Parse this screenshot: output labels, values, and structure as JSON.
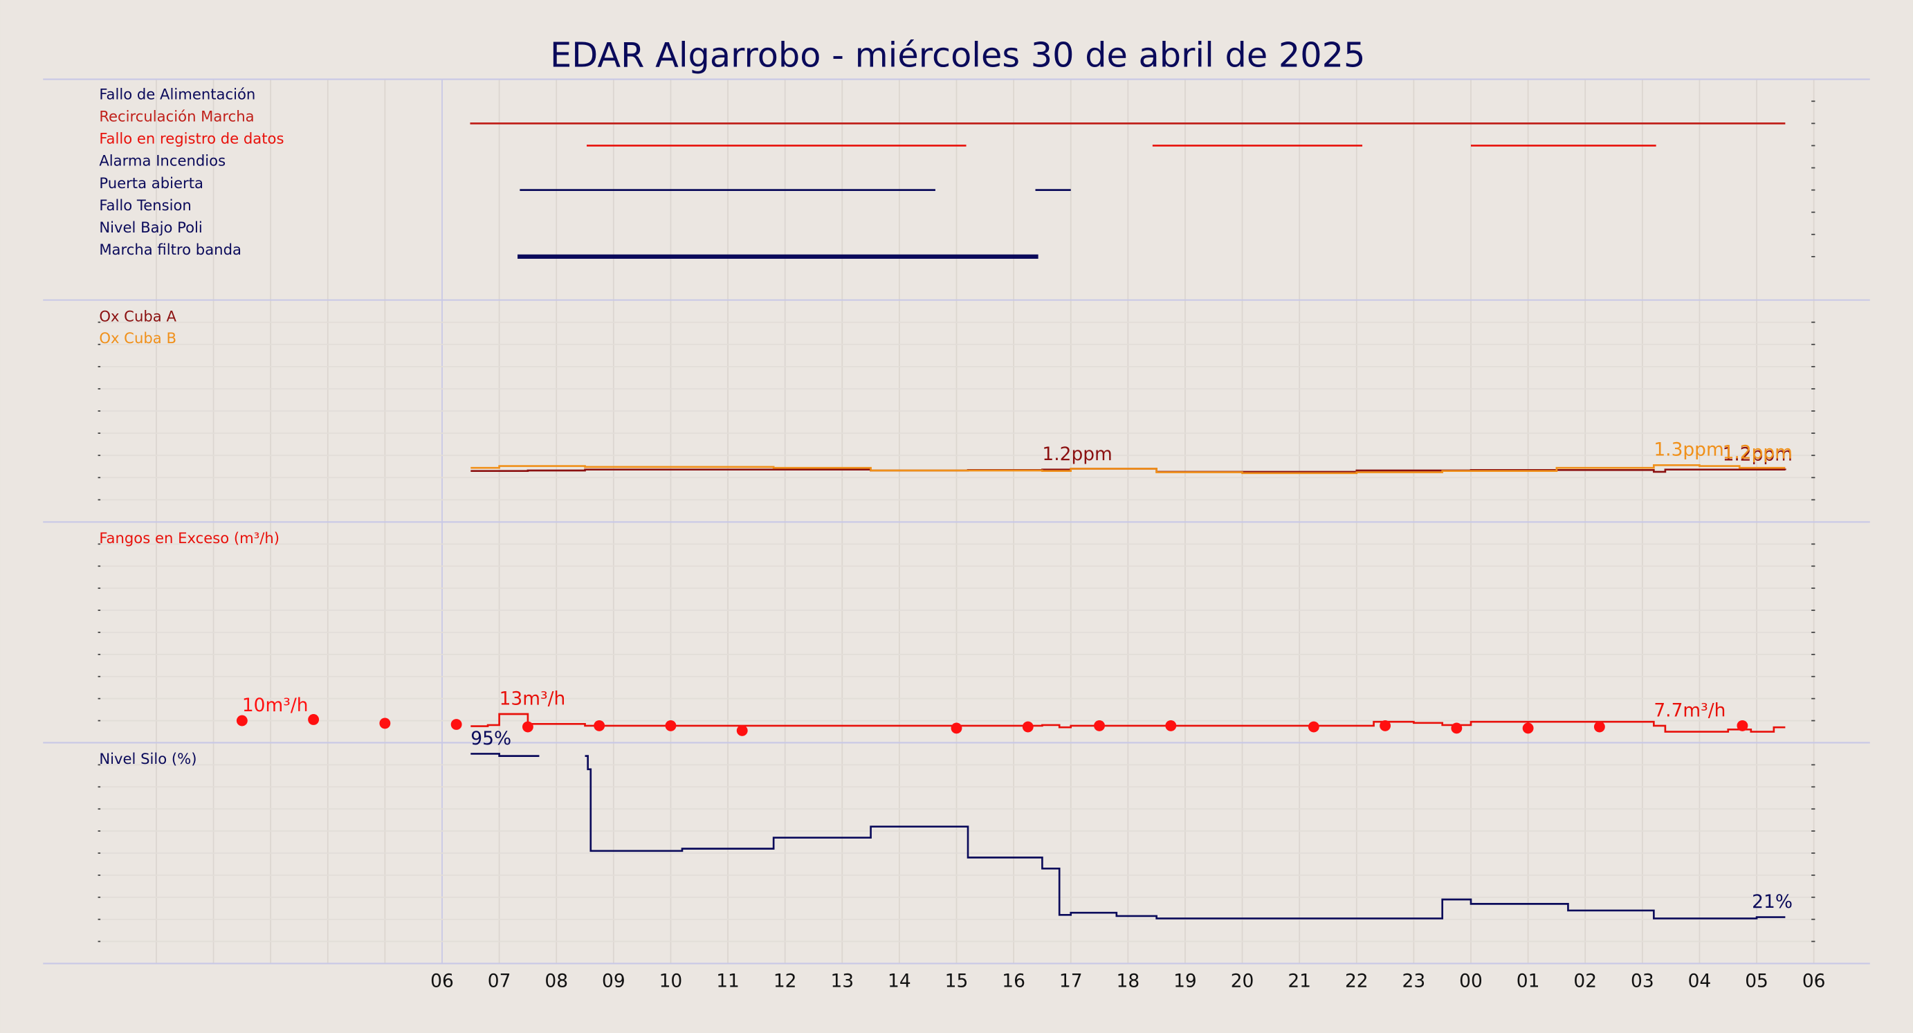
{
  "chart_data": {
    "type": "timeline",
    "title": "EDAR Algarrobo   -   miércoles 30 de abril de 2025",
    "xlim": [
      0,
      30
    ],
    "xminorticks": [
      1,
      2,
      3,
      4,
      5
    ],
    "xticks": [
      {
        "value": 6,
        "label": "06"
      },
      {
        "value": 7,
        "label": "07"
      },
      {
        "value": 8,
        "label": "08"
      },
      {
        "value": 9,
        "label": "09"
      },
      10,
      11,
      12,
      13,
      14,
      15,
      16,
      17,
      18,
      19,
      20,
      21,
      22,
      23,
      {
        "value": 24,
        "label": "00"
      },
      {
        "value": 25,
        "label": "01"
      },
      {
        "value": 26,
        "label": "02"
      },
      {
        "value": 27,
        "label": "03"
      },
      {
        "value": 28,
        "label": "04"
      },
      {
        "value": 29,
        "label": "05"
      },
      {
        "value": 30,
        "label": "06"
      }
    ],
    "panels": [
      {
        "type": "events",
        "rows": [
          {
            "name": "Fallo de Alimentación",
            "color": "#0a0a5a",
            "line_width": 1.5,
            "segments": []
          },
          {
            "name": "Recirculación Marcha",
            "color": "#c0201a",
            "line_width": 1.5,
            "segments": [
              [
                6.49,
                29.5
              ]
            ]
          },
          {
            "name": "Fallo en registro de datos",
            "color": "#e8100a",
            "line_width": 1.5,
            "segments": [
              [
                8.53,
                15.17
              ],
              [
                18.43,
                22.1
              ],
              [
                24.0,
                27.24
              ]
            ]
          },
          {
            "name": "Alarma Incendios",
            "color": "#0a0a5a",
            "line_width": 1.5,
            "segments": []
          },
          {
            "name": "Puerta abierta",
            "color": "#0a0a5a",
            "line_width": 1.5,
            "segments": [
              [
                7.36,
                14.63
              ],
              [
                16.38,
                17.0
              ]
            ]
          },
          {
            "name": "Fallo Tension",
            "color": "#0a0a5a",
            "line_width": 1.5,
            "segments": []
          },
          {
            "name": "Nivel Bajo Poli",
            "color": "#0a0a5a",
            "line_width": 1.5,
            "segments": []
          },
          {
            "name": "Marcha filtro banda",
            "color": "#0a0a5a",
            "line_width": 3.5,
            "segments": [
              [
                7.32,
                16.43
              ]
            ]
          }
        ]
      },
      {
        "type": "line",
        "ylim": [
          0,
          5
        ],
        "yticks": [
          0.5,
          1,
          1.5,
          2,
          2.5,
          3,
          3.5,
          4,
          4.5
        ],
        "series": [
          {
            "name": "Ox Cuba A",
            "type": "line",
            "color": "#8b1010",
            "x": [
              6.5,
              7.5,
              8.5,
              10,
              13.5,
              15.2,
              16.5,
              17,
              18.5,
              22,
              24,
              27.2,
              27.4,
              29.5
            ],
            "values": [
              1.15,
              1.16,
              1.18,
              1.18,
              1.16,
              1.17,
              1.18,
              1.2,
              1.13,
              1.16,
              1.17,
              1.13,
              1.18,
              1.17
            ],
            "value_labels": [
              null,
              null,
              null,
              null,
              null,
              null,
              "1.2ppm",
              null,
              null,
              null,
              null,
              null,
              null,
              "1.2ppm"
            ]
          },
          {
            "name": "Ox Cuba B",
            "type": "line",
            "color": "#f0901a",
            "x": [
              6.5,
              7,
              8.5,
              11.8,
              13.5,
              16.5,
              17,
              18.5,
              20,
              22,
              23.5,
              25.5,
              27.2,
              28,
              28.7,
              29.5
            ],
            "values": [
              1.22,
              1.26,
              1.24,
              1.22,
              1.16,
              1.15,
              1.2,
              1.12,
              1.1,
              1.12,
              1.15,
              1.22,
              1.28,
              1.26,
              1.22,
              1.22
            ],
            "value_labels": [
              null,
              null,
              null,
              null,
              null,
              null,
              null,
              null,
              null,
              null,
              null,
              null,
              "1.3ppm",
              null,
              null,
              "1.2ppm"
            ]
          }
        ]
      },
      {
        "type": "line",
        "ylim": [
          0,
          100
        ],
        "yticks": [
          10,
          20,
          30,
          40,
          50,
          60,
          70,
          80,
          90
        ],
        "series": [
          {
            "name": "Fangos en Exceso (m³/h)",
            "type": "line",
            "color": "#e8100a",
            "x": [
              6.5,
              6.8,
              7,
              7.5,
              8.5,
              15,
              16.5,
              16.8,
              17,
              22,
              22.3,
              23,
              23.5,
              24,
              27.2,
              27.4,
              28.5,
              28.9,
              29.3,
              29.5
            ],
            "values": [
              7.5,
              8,
              13,
              8.5,
              7.7,
              7.7,
              8,
              7,
              7.7,
              7.7,
              9.5,
              9,
              8,
              9.5,
              7.7,
              5,
              6,
              5,
              7,
              7
            ],
            "value_labels": [
              null,
              null,
              "13m³/h",
              null,
              null,
              null,
              null,
              null,
              null,
              null,
              null,
              null,
              null,
              null,
              "7.7m³/h",
              null,
              null,
              null,
              null,
              null
            ]
          },
          {
            "type": "scatter",
            "color": "#ff1010",
            "x": [
              2.5,
              3.75,
              5,
              6.25,
              7.5,
              8.75,
              10,
              11.25,
              15,
              16.25,
              17.5,
              18.75,
              21.25,
              22.5,
              23.75,
              25,
              26.25,
              28.75
            ],
            "values": [
              10,
              10.5,
              8.8,
              8.3,
              7.2,
              7.7,
              7.7,
              5.5,
              6.6,
              7.2,
              7.7,
              7.7,
              7.2,
              7.7,
              6.6,
              6.6,
              7.2,
              7.7
            ],
            "value_labels": [
              "10m³/h",
              null,
              null,
              null,
              null,
              null,
              null,
              null,
              null,
              null,
              null,
              null,
              null,
              null,
              null,
              null,
              null,
              null
            ]
          }
        ]
      },
      {
        "type": "line",
        "ylim": [
          0,
          100
        ],
        "yticks": [
          10,
          20,
          30,
          40,
          50,
          60,
          70,
          80,
          90
        ],
        "series": [
          {
            "name": "Nivel Silo (%)",
            "type": "line",
            "color": "#0a0a5a",
            "x": [
              6.5,
              7,
              7.7,
              8,
              8.5,
              8.55,
              8.6,
              10.2,
              11.8,
              13.5,
              15.2,
              16.5,
              16.8,
              17,
              17.8,
              18.5,
              23.5,
              24,
              25.7,
              27.2,
              29,
              29.5
            ],
            "values": [
              95,
              94,
              94,
              null,
              94,
              88,
              51,
              52,
              57,
              62,
              48,
              43,
              22,
              23,
              21.5,
              20.4,
              29,
              27,
              24,
              20.4,
              21,
              21
            ],
            "value_labels": [
              "95%",
              null,
              null,
              null,
              null,
              null,
              null,
              null,
              null,
              null,
              null,
              null,
              null,
              null,
              null,
              null,
              null,
              null,
              null,
              null,
              null,
              "21%"
            ]
          }
        ]
      }
    ]
  }
}
